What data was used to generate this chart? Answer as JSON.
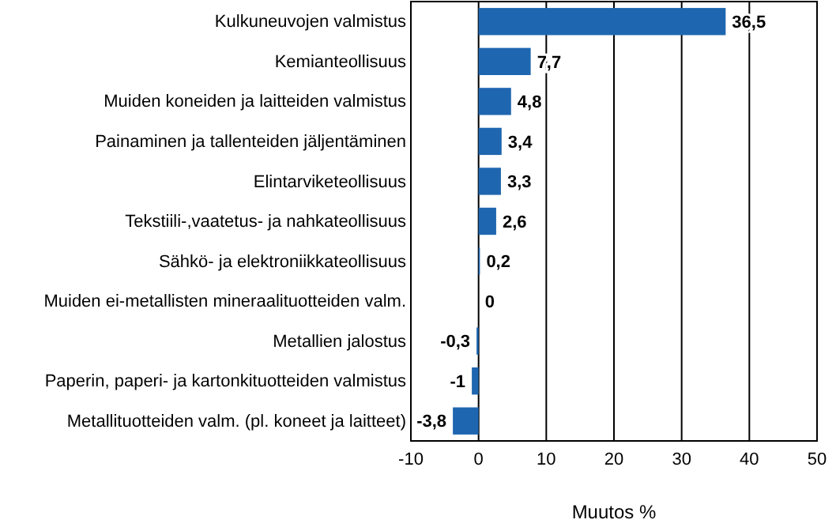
{
  "chart_data": {
    "type": "bar",
    "orientation": "horizontal",
    "xlabel": "Muutos  %",
    "categories": [
      "Kulkuneuvojen valmistus",
      "Kemianteollisuus",
      "Muiden koneiden ja laitteiden valmistus",
      "Painaminen ja tallenteiden jäljentäminen",
      "Elintarviketeollisuus",
      "Tekstiili-,vaatetus- ja nahkateollisuus",
      "Sähkö- ja elektroniikkateollisuus",
      "Muiden ei-metallisten mineraalituotteiden valm.",
      "Metallien jalostus",
      "Paperin, paperi- ja kartonkituotteiden valmistus",
      "Metallituotteiden valm. (pl. koneet ja laitteet)"
    ],
    "values": [
      36.5,
      7.7,
      4.8,
      3.4,
      3.3,
      2.6,
      0.2,
      0,
      -0.3,
      -1,
      -3.8
    ],
    "value_labels": [
      "36,5",
      "7,7",
      "4,8",
      "3,4",
      "3,3",
      "2,6",
      "0,2",
      "0",
      "-0,3",
      "-1",
      "-3,8"
    ],
    "color": "#1f66b0",
    "xlim": [
      -10,
      50
    ],
    "xticks": [
      -10,
      0,
      10,
      20,
      30,
      40,
      50
    ],
    "grid": "x"
  }
}
